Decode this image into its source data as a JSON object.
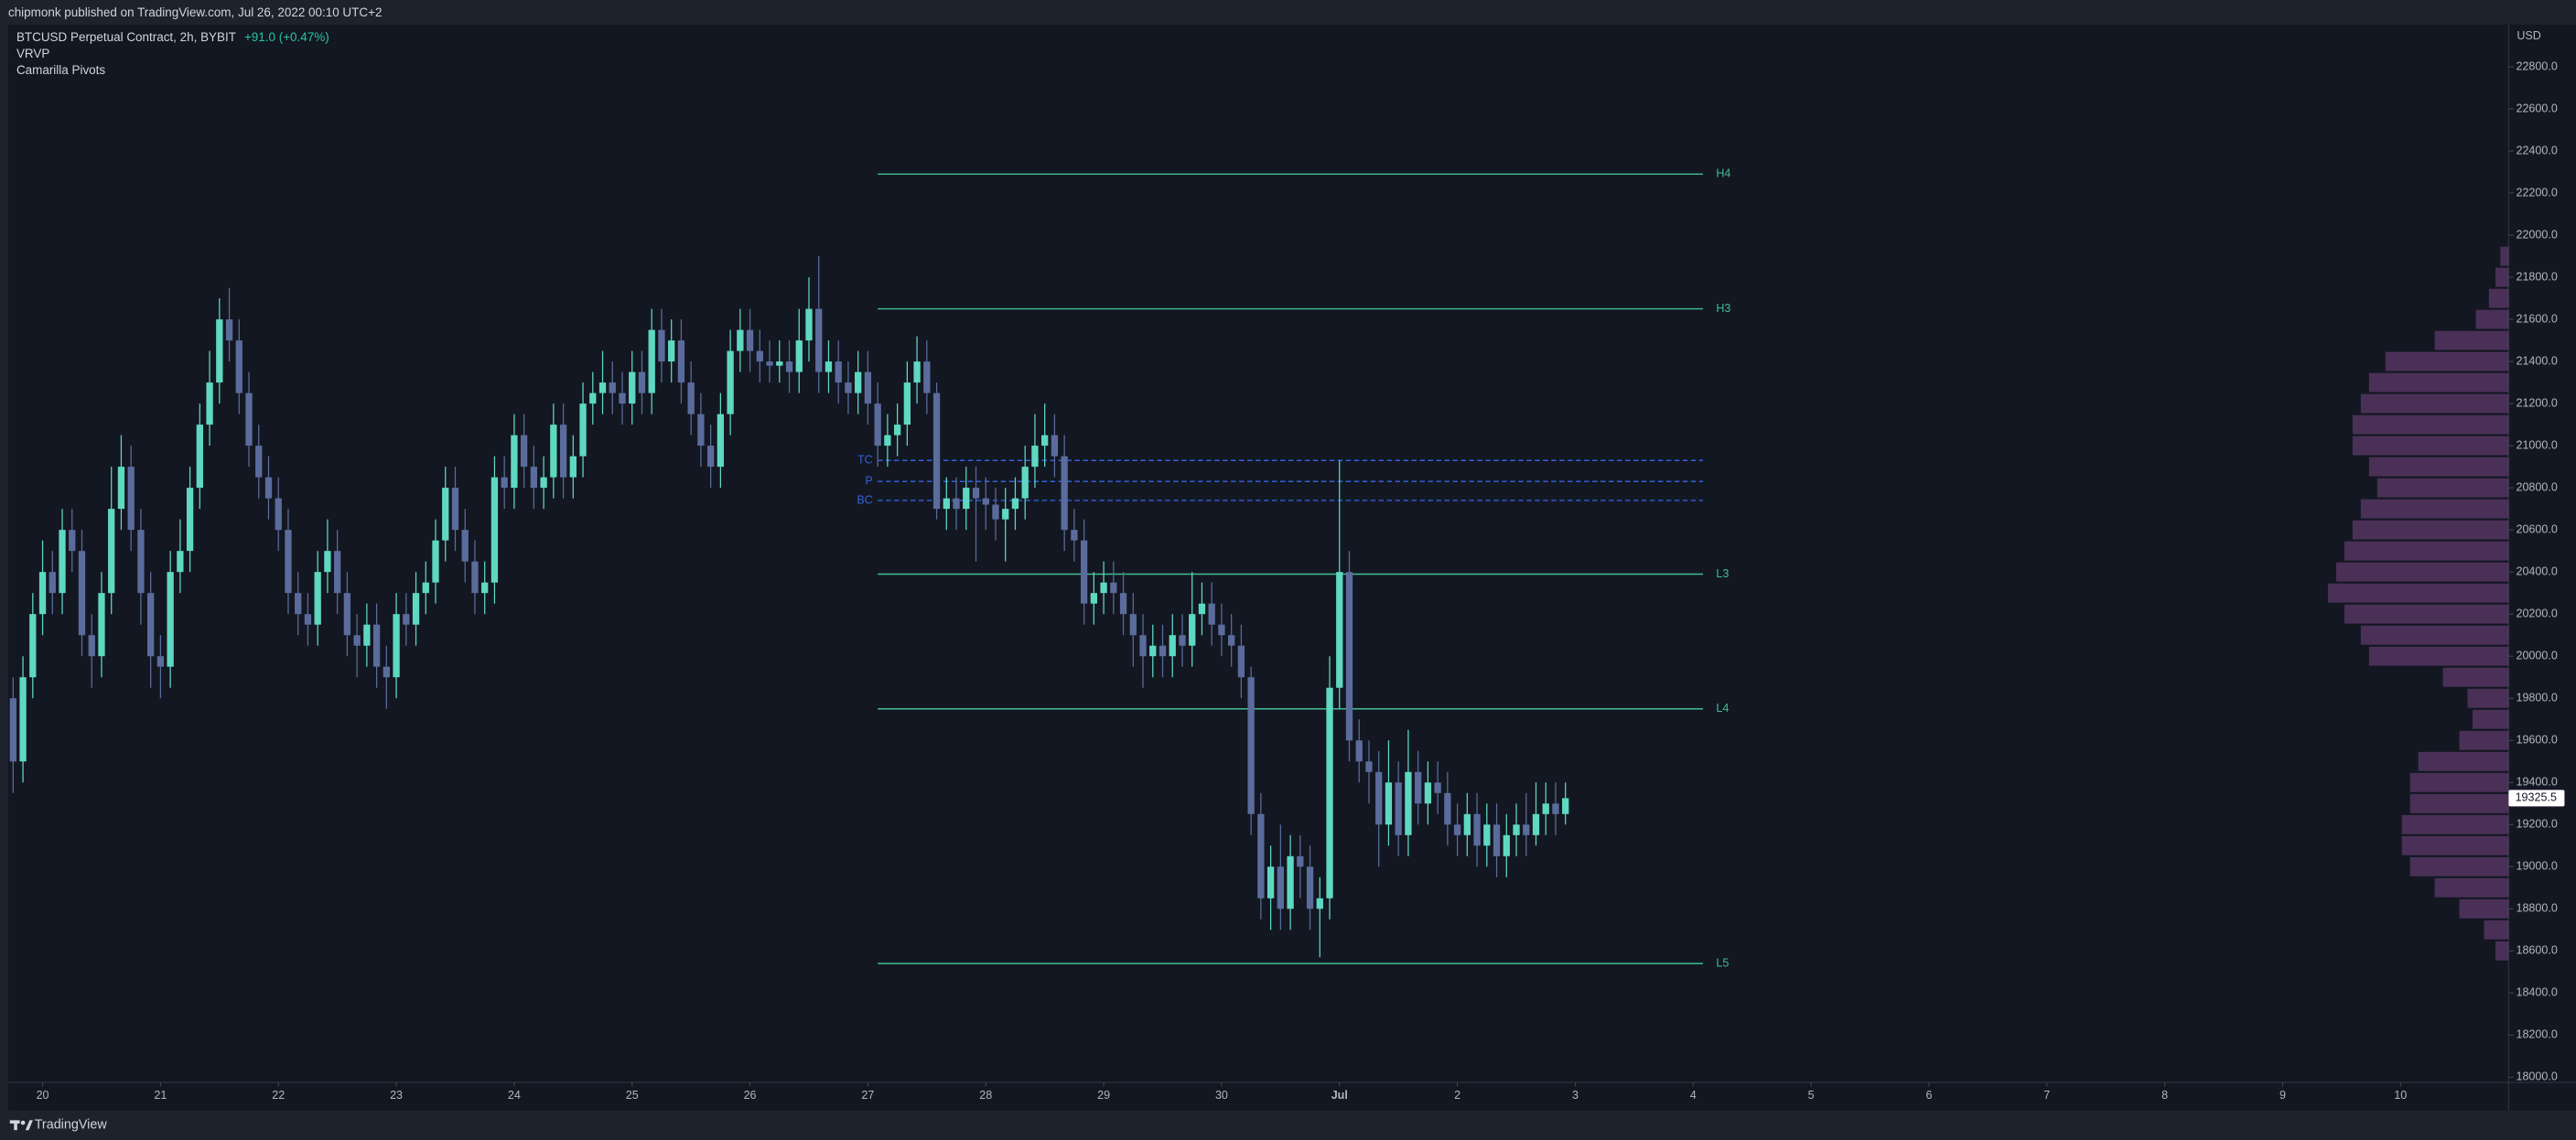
{
  "header": {
    "text": "chipmonk published on TradingView.com, Jul 26, 2022 00:10 UTC+2"
  },
  "footer": {
    "brand": "TradingView"
  },
  "chart_data": {
    "type": "candlestick",
    "title": "BTCUSD Perpetual Contract, 2h, BYBIT",
    "change": "+91.0 (+0.47%)",
    "indicators": [
      "VRVP",
      "Camarilla Pivots"
    ],
    "y_label": "USD",
    "grid": false,
    "up_color": "#5fd8c2",
    "down_color": "#5b6c9c",
    "ylim": [
      17975,
      23000
    ],
    "yticks": [
      {
        "value": 18000,
        "label": "18000.0"
      },
      {
        "value": 18200,
        "label": "18200.0"
      },
      {
        "value": 18400,
        "label": "18400.0"
      },
      {
        "value": 18600,
        "label": "18600.0"
      },
      {
        "value": 18800,
        "label": "18800.0"
      },
      {
        "value": 19000,
        "label": "19000.0"
      },
      {
        "value": 19200,
        "label": "19200.0"
      },
      {
        "value": 19400,
        "label": "19400.0"
      },
      {
        "value": 19600,
        "label": "19600.0"
      },
      {
        "value": 19800,
        "label": "19800.0"
      },
      {
        "value": 20000,
        "label": "20000.0"
      },
      {
        "value": 20200,
        "label": "20200.0"
      },
      {
        "value": 20400,
        "label": "20400.0"
      },
      {
        "value": 20600,
        "label": "20600.0"
      },
      {
        "value": 20800,
        "label": "20800.0"
      },
      {
        "value": 21000,
        "label": "21000.0"
      },
      {
        "value": 21200,
        "label": "21200.0"
      },
      {
        "value": 21400,
        "label": "21400.0"
      },
      {
        "value": 21600,
        "label": "21600.0"
      },
      {
        "value": 21800,
        "label": "21800.0"
      },
      {
        "value": 22000,
        "label": "22000.0"
      },
      {
        "value": 22200,
        "label": "22200.0"
      },
      {
        "value": 22400,
        "label": "22400.0"
      },
      {
        "value": 22600,
        "label": "22600.0"
      },
      {
        "value": 22800,
        "label": "22800.0"
      }
    ],
    "xlim": [
      -0.5,
      254
    ],
    "xticks": [
      {
        "value": 3,
        "label": "20"
      },
      {
        "value": 15,
        "label": "21"
      },
      {
        "value": 27,
        "label": "22"
      },
      {
        "value": 39,
        "label": "23"
      },
      {
        "value": 51,
        "label": "24"
      },
      {
        "value": 63,
        "label": "25"
      },
      {
        "value": 75,
        "label": "26"
      },
      {
        "value": 87,
        "label": "27"
      },
      {
        "value": 99,
        "label": "28"
      },
      {
        "value": 111,
        "label": "29"
      },
      {
        "value": 123,
        "label": "30"
      },
      {
        "value": 135,
        "label": "Jul"
      },
      {
        "value": 147,
        "label": "2"
      },
      {
        "value": 159,
        "label": "3"
      },
      {
        "value": 171,
        "label": "4"
      },
      {
        "value": 183,
        "label": "5"
      },
      {
        "value": 195,
        "label": "6"
      },
      {
        "value": 207,
        "label": "7"
      },
      {
        "value": 219,
        "label": "8"
      },
      {
        "value": 231,
        "label": "9"
      },
      {
        "value": 243,
        "label": "10"
      }
    ],
    "open": [
      19800,
      19500,
      19900,
      20200,
      20400,
      20300,
      20600,
      20500,
      20100,
      20000,
      20300,
      20700,
      20900,
      20600,
      20300,
      20000,
      19950,
      20400,
      20500,
      20800,
      21100,
      21300,
      21600,
      21500,
      21250,
      21000,
      20850,
      20750,
      20600,
      20300,
      20200,
      20150,
      20400,
      20500,
      20300,
      20100,
      20050,
      20150,
      19950,
      19900,
      20200,
      20150,
      20300,
      20350,
      20550,
      20800,
      20600,
      20450,
      20300,
      20350,
      20850,
      20800,
      21050,
      20900,
      20800,
      20850,
      21100,
      20850,
      20950,
      21200,
      21250,
      21300,
      21250,
      21200,
      21350,
      21250,
      21550,
      21400,
      21500,
      21300,
      21150,
      21000,
      20900,
      21150,
      21450,
      21550,
      21450,
      21400,
      21380,
      21400,
      21350,
      21500,
      21650,
      21350,
      21400,
      21300,
      21250,
      21350,
      21200,
      21000,
      21050,
      21100,
      21300,
      21400,
      21250,
      20700,
      20750,
      20700,
      20800,
      20750,
      20720,
      20650,
      20700,
      20750,
      20900,
      21000,
      21050,
      20950,
      20600,
      20550,
      20250,
      20300,
      20350,
      20300,
      20200,
      20100,
      20000,
      20050,
      20000,
      20100,
      20050,
      20200,
      20250,
      20150,
      20100,
      20050,
      19900,
      19250,
      18850,
      19000,
      18800,
      19050,
      19000,
      18800,
      18850,
      19850,
      20400,
      19600,
      19500,
      19450,
      19200,
      19400,
      19150,
      19450,
      19300,
      19400,
      19350,
      19200,
      19150,
      19250,
      19100,
      19200,
      19050,
      19150,
      19200,
      19150,
      19250,
      19300,
      19250
    ],
    "high": [
      19900,
      20000,
      20300,
      20550,
      20500,
      20700,
      20700,
      20600,
      20200,
      20400,
      20900,
      21050,
      21000,
      20700,
      20400,
      20100,
      20500,
      20650,
      20900,
      21200,
      21450,
      21700,
      21750,
      21600,
      21350,
      21100,
      20950,
      20850,
      20700,
      20400,
      20300,
      20500,
      20650,
      20600,
      20400,
      20200,
      20250,
      20250,
      20050,
      20300,
      20300,
      20400,
      20450,
      20650,
      20900,
      20900,
      20700,
      20550,
      20450,
      20950,
      20950,
      21150,
      21150,
      21000,
      20950,
      21200,
      21200,
      21050,
      21300,
      21350,
      21450,
      21400,
      21350,
      21450,
      21450,
      21650,
      21650,
      21600,
      21600,
      21400,
      21250,
      21100,
      21250,
      21550,
      21650,
      21650,
      21550,
      21500,
      21500,
      21500,
      21650,
      21800,
      21900,
      21500,
      21500,
      21400,
      21450,
      21450,
      21300,
      21150,
      21200,
      21400,
      21520,
      21500,
      21300,
      20850,
      20850,
      20900,
      20900,
      20850,
      20800,
      20800,
      20850,
      21000,
      21150,
      21200,
      21150,
      21050,
      20700,
      20650,
      20400,
      20450,
      20450,
      20400,
      20300,
      20200,
      20150,
      20150,
      20200,
      20200,
      20400,
      20350,
      20350,
      20250,
      20200,
      20150,
      19950,
      19350,
      19100,
      19200,
      19150,
      19150,
      19100,
      18950,
      20000,
      20930,
      20500,
      19700,
      19600,
      19550,
      19600,
      19500,
      19650,
      19550,
      19500,
      19500,
      19450,
      19300,
      19350,
      19350,
      19300,
      19300,
      19250,
      19300,
      19350,
      19400,
      19400,
      19400,
      19400
    ],
    "low": [
      19350,
      19400,
      19800,
      20100,
      20200,
      20200,
      20400,
      20000,
      19850,
      19900,
      20200,
      20600,
      20500,
      20150,
      19850,
      19800,
      19850,
      20300,
      20400,
      20700,
      21000,
      21200,
      21400,
      21150,
      20900,
      20750,
      20650,
      20500,
      20200,
      20100,
      20050,
      20050,
      20300,
      20200,
      20000,
      19900,
      19950,
      19850,
      19750,
      19800,
      20050,
      20050,
      20200,
      20250,
      20450,
      20500,
      20350,
      20200,
      20200,
      20250,
      20700,
      20700,
      20800,
      20700,
      20700,
      20750,
      20750,
      20750,
      20850,
      21100,
      21150,
      21150,
      21100,
      21100,
      21150,
      21150,
      21300,
      21300,
      21200,
      21050,
      20900,
      20800,
      20800,
      21050,
      21350,
      21350,
      21300,
      21300,
      21300,
      21250,
      21250,
      21400,
      21250,
      21250,
      21200,
      21150,
      21150,
      21100,
      20900,
      20900,
      20950,
      21000,
      21200,
      21150,
      20650,
      20600,
      20600,
      20600,
      20450,
      20600,
      20550,
      20450,
      20600,
      20650,
      20800,
      20900,
      20850,
      20500,
      20450,
      20150,
      20150,
      20200,
      20200,
      20100,
      19950,
      19850,
      19900,
      19900,
      19900,
      19950,
      19950,
      20100,
      20050,
      20000,
      19950,
      19800,
      19150,
      18750,
      18700,
      18700,
      18700,
      18850,
      18700,
      18570,
      18750,
      19750,
      19500,
      19400,
      19300,
      19000,
      19100,
      19050,
      19050,
      19200,
      19200,
      19250,
      19100,
      19050,
      19050,
      19000,
      19000,
      18950,
      18950,
      19050,
      19050,
      19100,
      19150,
      19150,
      19200
    ],
    "close": [
      19500,
      19900,
      20200,
      20400,
      20300,
      20600,
      20500,
      20100,
      20000,
      20300,
      20700,
      20900,
      20600,
      20300,
      20000,
      19950,
      20400,
      20500,
      20800,
      21100,
      21300,
      21600,
      21500,
      21250,
      21000,
      20850,
      20750,
      20600,
      20300,
      20200,
      20150,
      20400,
      20500,
      20300,
      20100,
      20050,
      20150,
      19950,
      19900,
      20200,
      20150,
      20300,
      20350,
      20550,
      20800,
      20600,
      20450,
      20300,
      20350,
      20850,
      20800,
      21050,
      20900,
      20800,
      20850,
      21100,
      20850,
      20950,
      21200,
      21250,
      21300,
      21250,
      21200,
      21350,
      21250,
      21550,
      21400,
      21500,
      21300,
      21150,
      21000,
      20900,
      21150,
      21450,
      21550,
      21450,
      21400,
      21380,
      21400,
      21350,
      21500,
      21650,
      21350,
      21400,
      21300,
      21250,
      21350,
      21200,
      21000,
      21050,
      21100,
      21300,
      21400,
      21250,
      20700,
      20750,
      20700,
      20800,
      20750,
      20720,
      20650,
      20700,
      20750,
      20900,
      21000,
      21050,
      20950,
      20600,
      20550,
      20250,
      20300,
      20350,
      20300,
      20200,
      20100,
      20000,
      20050,
      20000,
      20100,
      20050,
      20200,
      20250,
      20150,
      20100,
      20050,
      19900,
      19250,
      18850,
      19000,
      18800,
      19050,
      19000,
      18800,
      18850,
      19850,
      20400,
      19600,
      19500,
      19450,
      19200,
      19400,
      19150,
      19450,
      19300,
      19400,
      19350,
      19200,
      19150,
      19250,
      19100,
      19200,
      19050,
      19150,
      19200,
      19150,
      19250,
      19300,
      19250,
      19325.5
    ],
    "last_price": {
      "value": 19325.5,
      "label": "19325.5"
    },
    "pivots": {
      "x_range": [
        88,
        172
      ],
      "levels": [
        {
          "name": "H4",
          "value": 22290,
          "color": "#3fbf8f",
          "style": "solid"
        },
        {
          "name": "H3",
          "value": 21650,
          "color": "#3fbf8f",
          "style": "solid"
        },
        {
          "name": "TC",
          "value": 20930,
          "color": "#2f62d8",
          "style": "dashed"
        },
        {
          "name": "P",
          "value": 20830,
          "color": "#2f62d8",
          "style": "dashed"
        },
        {
          "name": "BC",
          "value": 20740,
          "color": "#2f62d8",
          "style": "dashed"
        },
        {
          "name": "L3",
          "value": 20390,
          "color": "#3fbf8f",
          "style": "solid"
        },
        {
          "name": "L4",
          "value": 19750,
          "color": "#3fbf8f",
          "style": "solid"
        },
        {
          "name": "L5",
          "value": 18540,
          "color": "#3fbf8f",
          "style": "solid"
        }
      ]
    },
    "volume_profile": {
      "color": "#8e4f9a",
      "prices": [
        18600,
        18700,
        18800,
        18900,
        19000,
        19100,
        19200,
        19300,
        19400,
        19500,
        19600,
        19700,
        19800,
        19900,
        20000,
        20100,
        20200,
        20300,
        20400,
        20500,
        20600,
        20700,
        20800,
        20900,
        21000,
        21100,
        21200,
        21300,
        21400,
        21500,
        21600,
        21700,
        21800,
        21900
      ],
      "values": [
        8,
        15,
        30,
        45,
        60,
        65,
        65,
        60,
        60,
        55,
        30,
        22,
        25,
        40,
        85,
        90,
        100,
        110,
        105,
        100,
        95,
        90,
        80,
        85,
        95,
        95,
        90,
        85,
        75,
        45,
        20,
        12,
        8,
        5
      ]
    }
  }
}
